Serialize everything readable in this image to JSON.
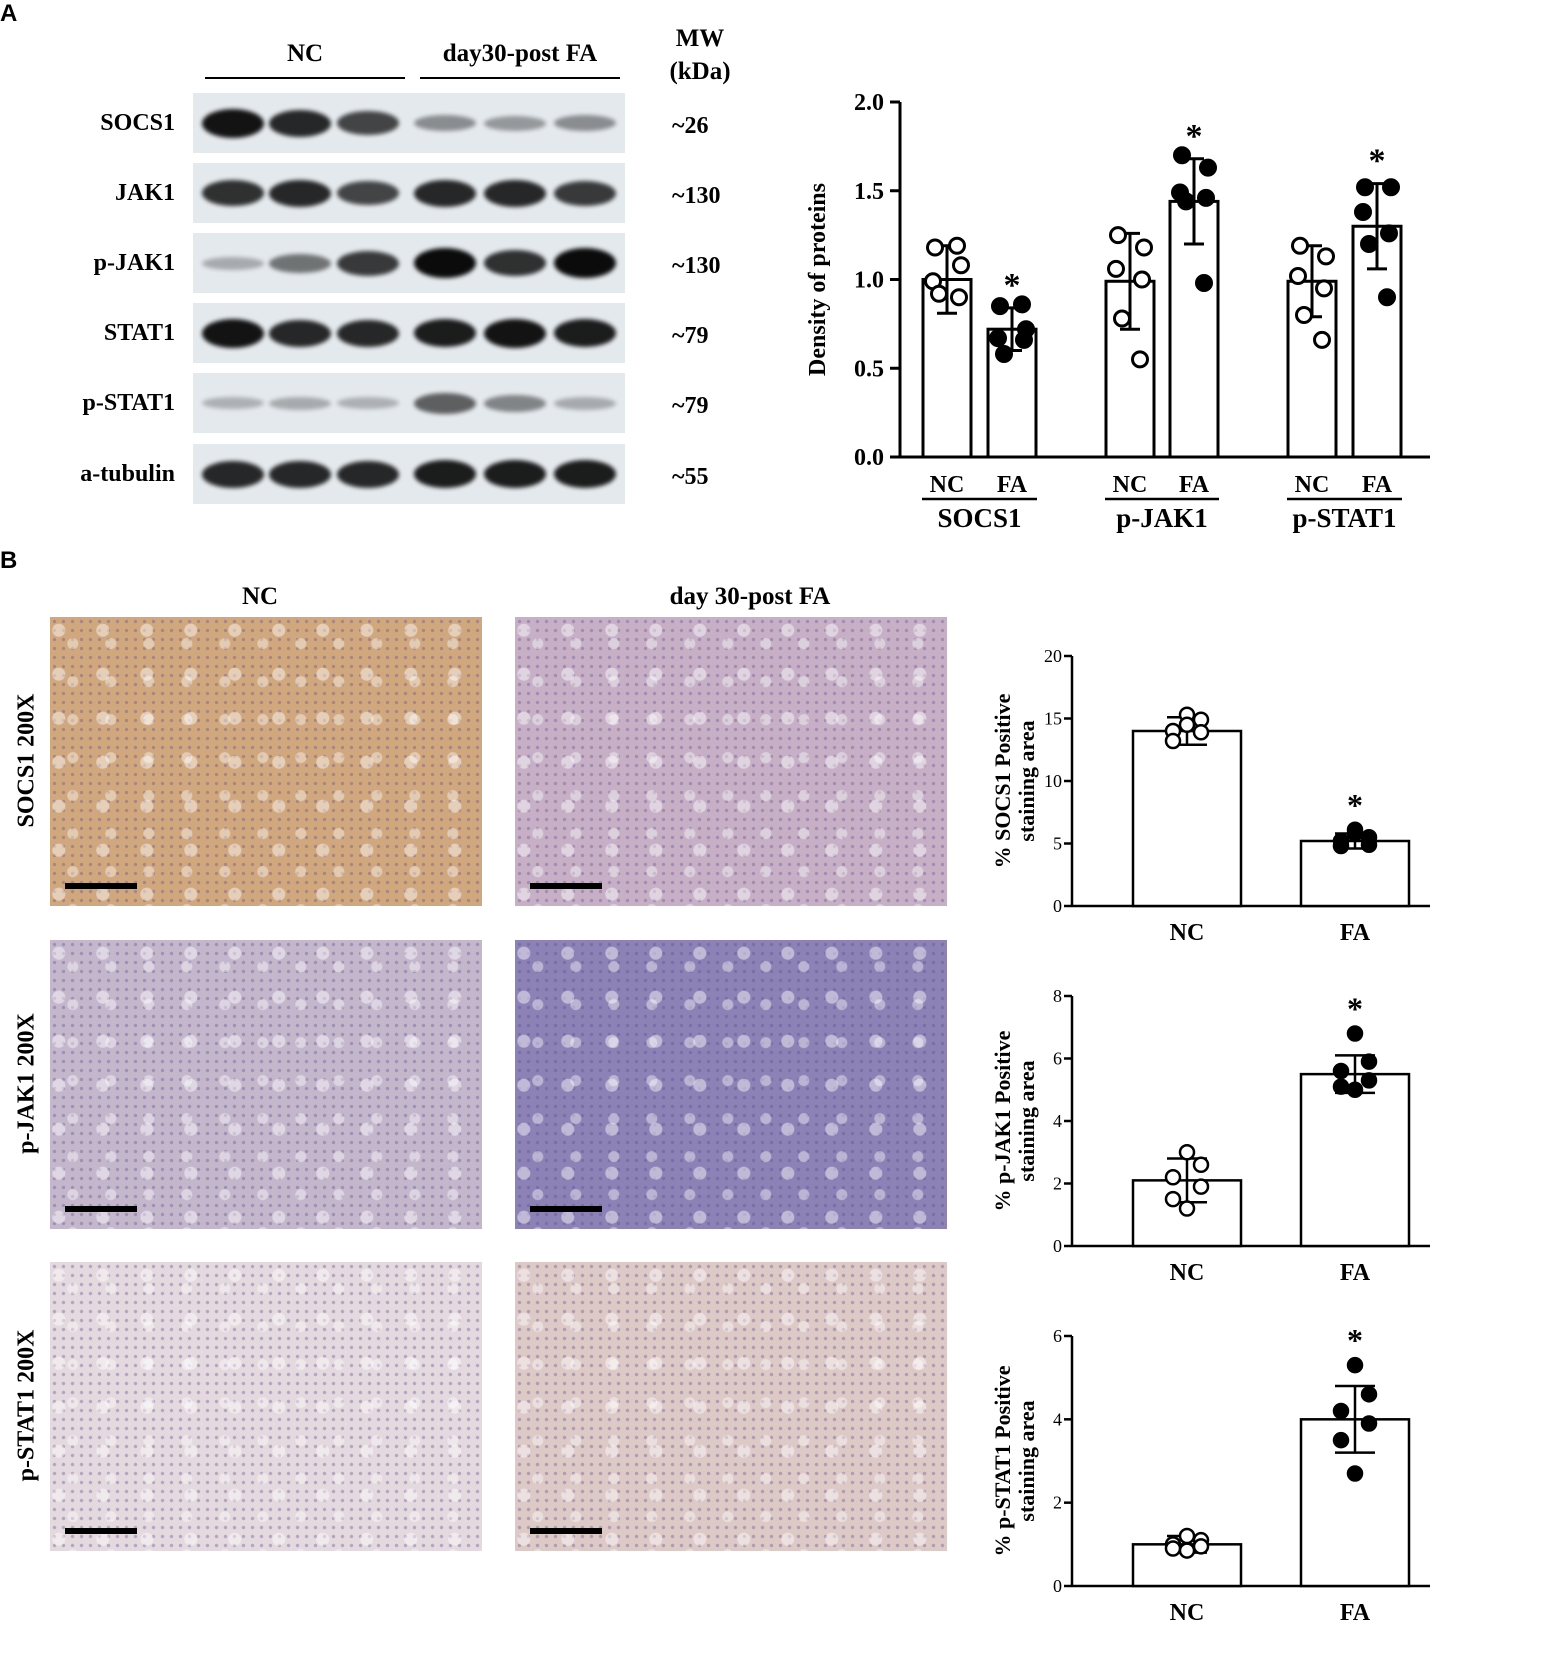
{
  "panel_a": {
    "letter": "A",
    "group_nc": "NC",
    "group_fa": "day30-post FA",
    "mw_header_line1": "MW",
    "mw_header_line2": "(kDa)",
    "blots": [
      {
        "label": "SOCS1",
        "mw": "~26",
        "intensity": [
          0.95,
          0.85,
          0.7,
          0.3,
          0.25,
          0.3
        ]
      },
      {
        "label": "JAK1",
        "mw": "~130",
        "intensity": [
          0.8,
          0.85,
          0.7,
          0.85,
          0.85,
          0.75
        ]
      },
      {
        "label": "p-JAK1",
        "mw": "~130",
        "intensity": [
          0.15,
          0.45,
          0.75,
          1.0,
          0.8,
          1.0
        ]
      },
      {
        "label": "STAT1",
        "mw": "~79",
        "intensity": [
          0.95,
          0.85,
          0.85,
          0.9,
          0.95,
          0.9
        ]
      },
      {
        "label": "p-STAT1",
        "mw": "~79",
        "intensity": [
          0.12,
          0.15,
          0.12,
          0.55,
          0.35,
          0.15
        ]
      },
      {
        "label": "a-tubulin",
        "mw": "~55",
        "intensity": [
          0.85,
          0.85,
          0.85,
          0.9,
          0.9,
          0.9
        ]
      }
    ]
  },
  "panel_b": {
    "letter": "B",
    "col_nc": "NC",
    "col_fa": "day 30-post FA",
    "rows": [
      {
        "label": "SOCS1 200X",
        "nc_stain": "#d1a87e",
        "fa_stain": "#c7b0c6"
      },
      {
        "label": "p-JAK1 200X",
        "nc_stain": "#c4b7cc",
        "fa_stain": "#8d82b6"
      },
      {
        "label": "p-STAT1 200X",
        "nc_stain": "#e3d9de",
        "fa_stain": "#ddc9c6"
      }
    ]
  },
  "chart_data": [
    {
      "type": "bar",
      "ylabel": "Density of proteins",
      "ylim": [
        0,
        2.0
      ],
      "yticks": [
        "0.0",
        "0.5",
        "1.0",
        "1.5",
        "2.0"
      ],
      "yticks_values": [
        0,
        0.5,
        1.0,
        1.5,
        2.0
      ],
      "groups": [
        {
          "name": "SOCS1",
          "categories": [
            "NC",
            "FA"
          ],
          "values": [
            1.0,
            0.72
          ],
          "err": [
            0.19,
            0.12
          ],
          "sig": [
            "",
            "*"
          ],
          "points": [
            [
              1.18,
              1.08,
              0.99,
              0.9,
              0.92,
              1.19
            ],
            [
              0.85,
              0.72,
              0.67,
              0.66,
              0.58,
              0.86
            ]
          ]
        },
        {
          "name": "p-JAK1",
          "categories": [
            "NC",
            "FA"
          ],
          "values": [
            0.99,
            1.44
          ],
          "err": [
            0.27,
            0.24
          ],
          "sig": [
            "",
            "*"
          ],
          "points": [
            [
              1.25,
              1.18,
              1.06,
              1.0,
              0.78,
              0.55
            ],
            [
              1.7,
              1.63,
              1.49,
              1.46,
              1.44,
              0.98
            ]
          ]
        },
        {
          "name": "p-STAT1",
          "categories": [
            "NC",
            "FA"
          ],
          "values": [
            0.99,
            1.3
          ],
          "err": [
            0.2,
            0.24
          ],
          "sig": [
            "",
            "*"
          ],
          "points": [
            [
              1.19,
              1.13,
              1.02,
              0.95,
              0.8,
              0.66
            ],
            [
              1.52,
              1.52,
              1.38,
              1.26,
              1.2,
              0.9
            ]
          ]
        }
      ]
    },
    {
      "type": "bar",
      "ylabel_line1": "% SOCS1 Positive",
      "ylabel_line2": "staining area",
      "ylim": [
        0,
        20
      ],
      "yticks": [
        "0",
        "5",
        "10",
        "15",
        "20"
      ],
      "yticks_values": [
        0,
        5,
        10,
        15,
        20
      ],
      "categories": [
        "NC",
        "FA"
      ],
      "values": [
        14.0,
        5.2
      ],
      "err": [
        1.1,
        0.6
      ],
      "sig": [
        "",
        "*"
      ],
      "points": [
        [
          15.3,
          14.9,
          14.0,
          13.9,
          13.2,
          14.5
        ],
        [
          6.1,
          5.5,
          5.2,
          4.9,
          4.8,
          5.8
        ]
      ]
    },
    {
      "type": "bar",
      "ylabel_line1": "% p-JAK1 Positive",
      "ylabel_line2": "staining area",
      "ylim": [
        0,
        8
      ],
      "yticks": [
        "0",
        "2",
        "4",
        "6",
        "8"
      ],
      "yticks_values": [
        0,
        2,
        4,
        6,
        8
      ],
      "categories": [
        "NC",
        "FA"
      ],
      "values": [
        2.1,
        5.5
      ],
      "err": [
        0.7,
        0.6
      ],
      "sig": [
        "",
        "*"
      ],
      "points": [
        [
          3.0,
          2.6,
          2.2,
          1.9,
          1.5,
          1.2
        ],
        [
          6.8,
          5.9,
          5.6,
          5.3,
          5.1,
          5.0
        ]
      ]
    },
    {
      "type": "bar",
      "ylabel_line1": "% p-STAT1 Positive",
      "ylabel_line2": "staining area",
      "ylim": [
        0,
        6
      ],
      "yticks": [
        "0",
        "2",
        "4",
        "6"
      ],
      "yticks_values": [
        0,
        2,
        4,
        6
      ],
      "categories": [
        "NC",
        "FA"
      ],
      "values": [
        1.0,
        4.0
      ],
      "err": [
        0.2,
        0.8
      ],
      "sig": [
        "",
        "*"
      ],
      "points": [
        [
          1.2,
          1.1,
          1.0,
          0.95,
          0.9,
          0.85
        ],
        [
          5.3,
          4.6,
          4.2,
          3.9,
          3.5,
          2.7
        ]
      ]
    }
  ]
}
